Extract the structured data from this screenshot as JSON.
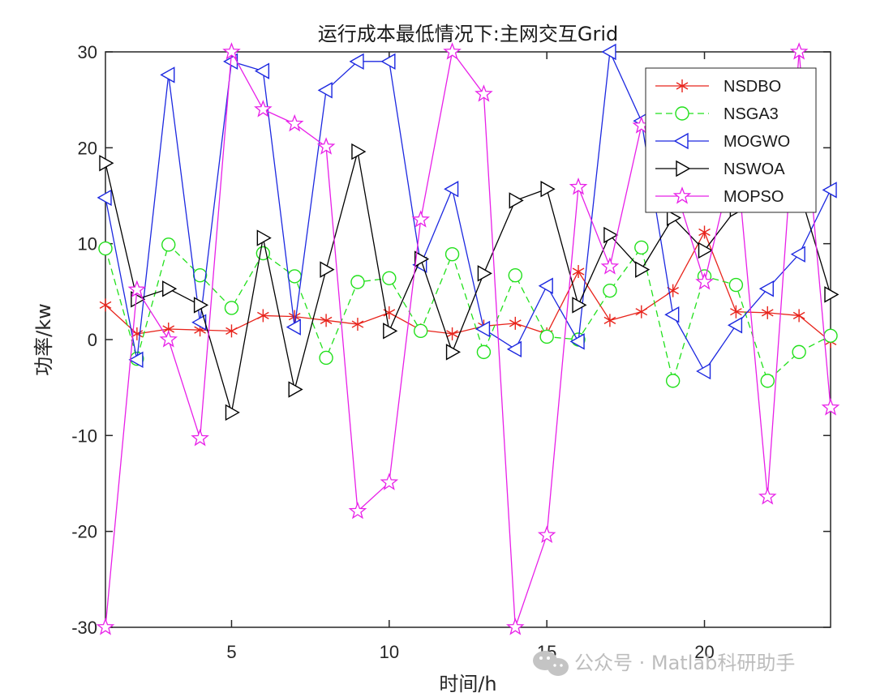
{
  "chart_data": {
    "type": "line",
    "title": "运行成本最低情况下:主网交互Grid",
    "xlabel": "时间/h",
    "ylabel": "功率/kw",
    "xlim": [
      1,
      24
    ],
    "ylim": [
      -30,
      30
    ],
    "xticks": [
      5,
      10,
      15,
      20
    ],
    "yticks": [
      -30,
      -20,
      -10,
      0,
      10,
      20,
      30
    ],
    "grid": false,
    "legend_position": "top-right",
    "x": [
      1,
      2,
      3,
      4,
      5,
      6,
      7,
      8,
      9,
      10,
      11,
      12,
      13,
      14,
      15,
      16,
      17,
      18,
      19,
      20,
      21,
      22,
      23,
      24
    ],
    "series": [
      {
        "name": "NSDBO",
        "color": "#e8241c",
        "marker": "asterisk",
        "dash": "solid",
        "values": [
          3.6,
          0.6,
          1.1,
          1.0,
          0.9,
          2.5,
          2.4,
          2.0,
          1.6,
          2.8,
          1.0,
          0.6,
          1.4,
          1.7,
          0.6,
          7.1,
          2.0,
          2.9,
          5.1,
          11.2,
          2.9,
          2.8,
          2.5,
          -0.2
        ]
      },
      {
        "name": "NSGA3",
        "color": "#22e01c",
        "marker": "circle",
        "dash": "dashed",
        "values": [
          9.5,
          -2.0,
          9.9,
          6.7,
          3.3,
          9.0,
          6.6,
          -1.9,
          6.0,
          6.4,
          0.9,
          8.9,
          -1.3,
          6.7,
          0.3,
          0.0,
          5.1,
          9.6,
          -4.3,
          6.6,
          5.7,
          -4.3,
          -1.3,
          0.4
        ]
      },
      {
        "name": "MOGWO",
        "color": "#1c28e0",
        "marker": "triangle-left",
        "dash": "solid",
        "values": [
          14.8,
          -2.1,
          27.6,
          1.8,
          29.0,
          28.0,
          1.3,
          26.0,
          29.0,
          29.0,
          7.8,
          15.7,
          1.1,
          -1.0,
          5.6,
          -0.2,
          30.0,
          22.8,
          2.6,
          -3.3,
          1.5,
          5.3,
          8.9,
          15.6
        ]
      },
      {
        "name": "NSWOA",
        "color": "#000000",
        "marker": "triangle-right",
        "dash": "solid",
        "values": [
          18.4,
          4.2,
          5.3,
          3.6,
          -7.6,
          10.6,
          -5.2,
          7.3,
          19.6,
          0.9,
          8.4,
          -1.3,
          6.9,
          14.5,
          15.7,
          3.6,
          10.9,
          7.3,
          12.7,
          9.3,
          13.6,
          19.3,
          15.6,
          4.7
        ]
      },
      {
        "name": "MOPSO",
        "color": "#e820e8",
        "marker": "pentagram",
        "dash": "solid",
        "values": [
          -30.0,
          5.2,
          0.0,
          -10.3,
          30.0,
          24.0,
          22.5,
          20.1,
          -17.9,
          -14.9,
          12.5,
          30.0,
          25.6,
          -30.0,
          -20.4,
          15.9,
          7.6,
          22.3,
          16.6,
          6.0,
          19.8,
          -16.4,
          30.0,
          -7.1
        ]
      }
    ]
  },
  "watermark": {
    "text": "公众号 · Matlab科研助手"
  }
}
